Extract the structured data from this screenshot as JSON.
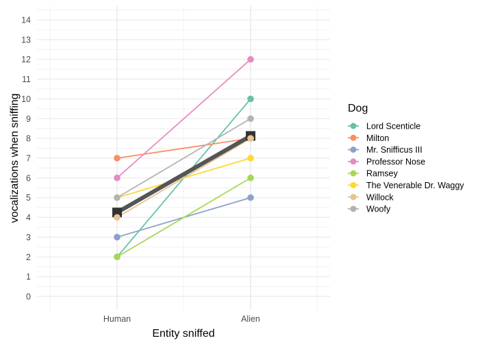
{
  "chart_data": {
    "type": "line",
    "title": "",
    "xlabel": "Entity sniffed",
    "ylabel": "vocalizations when sniffing",
    "categories": [
      "Human",
      "Alien"
    ],
    "ylim": [
      0,
      14
    ],
    "yticks": [
      0,
      1,
      2,
      3,
      4,
      5,
      6,
      7,
      8,
      9,
      10,
      11,
      12,
      13,
      14
    ],
    "grid": true,
    "legend": {
      "title": "Dog",
      "position": "right"
    },
    "series": [
      {
        "name": "Lord Scenticle",
        "color": "#66c2a5",
        "values": [
          2,
          10
        ]
      },
      {
        "name": "Milton",
        "color": "#fc8d62",
        "values": [
          7,
          8
        ]
      },
      {
        "name": "Mr. Snifficus III",
        "color": "#8da0cb",
        "values": [
          3,
          5
        ]
      },
      {
        "name": "Professor Nose",
        "color": "#e78ac3",
        "values": [
          6,
          12
        ]
      },
      {
        "name": "Ramsey",
        "color": "#a6d854",
        "values": [
          2,
          6
        ]
      },
      {
        "name": "The Venerable Dr. Waggy",
        "color": "#ffd92f",
        "values": [
          5,
          7
        ]
      },
      {
        "name": "Willock",
        "color": "#e5c494",
        "values": [
          4,
          8
        ]
      },
      {
        "name": "Woofy",
        "color": "#b3b3b3",
        "values": [
          5,
          9
        ]
      }
    ],
    "summary": {
      "name": "mean",
      "color": "#333333",
      "line_color": "#555555",
      "values": [
        4.25,
        8.125
      ]
    }
  }
}
